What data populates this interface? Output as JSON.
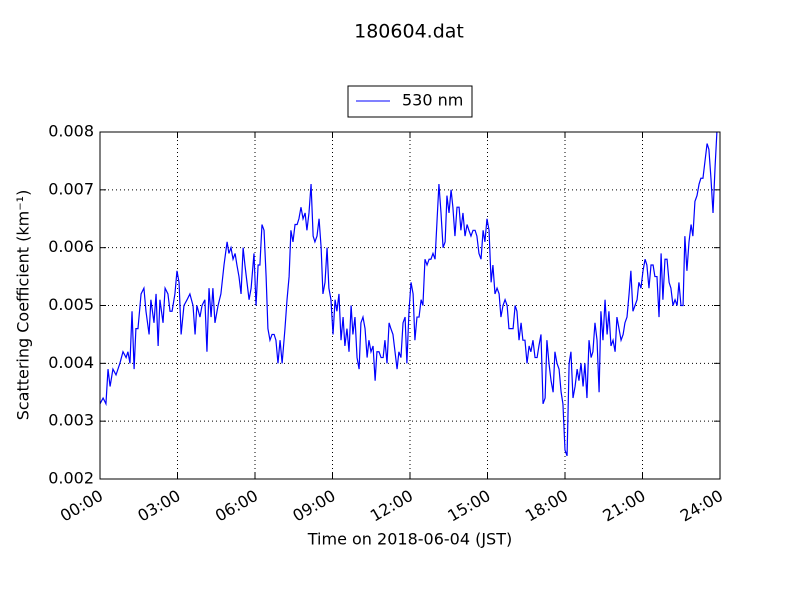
{
  "chart_data": {
    "type": "line",
    "title": "180604.dat",
    "x_label": "Time on 2018-06-04 (JST)",
    "y_label": "Scattering Coefficient (km⁻¹)",
    "legend": "top",
    "grid": true,
    "xlim": [
      0,
      24
    ],
    "xticks": [
      {
        "value": 0,
        "label": "00:00"
      },
      {
        "value": 3,
        "label": "03:00"
      },
      {
        "value": 6,
        "label": "06:00"
      },
      {
        "value": 9,
        "label": "09:00"
      },
      {
        "value": 12,
        "label": "12:00"
      },
      {
        "value": 15,
        "label": "15:00"
      },
      {
        "value": 18,
        "label": "18:00"
      },
      {
        "value": 21,
        "label": "21:00"
      },
      {
        "value": 24,
        "label": "24:00"
      }
    ],
    "ylim": [
      0.002,
      0.008
    ],
    "yticks": [
      0.002,
      0.003,
      0.004,
      0.005,
      0.006,
      0.007,
      0.008
    ],
    "x": [
      0.0,
      0.12,
      0.23,
      0.31,
      0.39,
      0.5,
      0.62,
      0.77,
      0.89,
      1.01,
      1.08,
      1.16,
      1.24,
      1.32,
      1.39,
      1.47,
      1.59,
      1.7,
      1.78,
      1.9,
      1.97,
      2.09,
      2.17,
      2.25,
      2.32,
      2.44,
      2.52,
      2.63,
      2.71,
      2.79,
      2.9,
      2.98,
      3.06,
      3.14,
      3.25,
      3.37,
      3.48,
      3.6,
      3.68,
      3.75,
      3.87,
      3.95,
      4.06,
      4.14,
      4.22,
      4.3,
      4.37,
      4.45,
      4.57,
      4.68,
      4.8,
      4.92,
      4.99,
      5.07,
      5.15,
      5.23,
      5.3,
      5.38,
      5.46,
      5.54,
      5.61,
      5.69,
      5.77,
      5.85,
      5.96,
      6.04,
      6.12,
      6.19,
      6.27,
      6.35,
      6.43,
      6.5,
      6.58,
      6.66,
      6.74,
      6.81,
      6.89,
      6.97,
      7.05,
      7.16,
      7.24,
      7.32,
      7.39,
      7.47,
      7.55,
      7.63,
      7.7,
      7.78,
      7.86,
      7.94,
      8.01,
      8.09,
      8.17,
      8.25,
      8.32,
      8.4,
      8.48,
      8.56,
      8.63,
      8.71,
      8.79,
      8.86,
      8.94,
      9.02,
      9.1,
      9.17,
      9.25,
      9.33,
      9.41,
      9.48,
      9.56,
      9.64,
      9.72,
      9.79,
      9.87,
      9.95,
      10.03,
      10.1,
      10.18,
      10.26,
      10.34,
      10.41,
      10.49,
      10.57,
      10.65,
      10.72,
      10.8,
      10.88,
      10.96,
      11.03,
      11.11,
      11.19,
      11.26,
      11.34,
      11.42,
      11.5,
      11.57,
      11.65,
      11.73,
      11.81,
      11.88,
      11.96,
      12.04,
      12.12,
      12.19,
      12.27,
      12.35,
      12.43,
      12.5,
      12.58,
      12.66,
      12.74,
      12.81,
      12.89,
      12.97,
      13.05,
      13.12,
      13.2,
      13.28,
      13.36,
      13.43,
      13.51,
      13.59,
      13.66,
      13.74,
      13.82,
      13.9,
      13.97,
      14.05,
      14.13,
      14.21,
      14.28,
      14.36,
      14.44,
      14.52,
      14.59,
      14.67,
      14.75,
      14.83,
      14.9,
      14.98,
      15.06,
      15.14,
      15.21,
      15.29,
      15.37,
      15.45,
      15.52,
      15.6,
      15.68,
      15.76,
      15.83,
      15.91,
      15.99,
      16.07,
      16.14,
      16.22,
      16.3,
      16.37,
      16.45,
      16.53,
      16.61,
      16.68,
      16.76,
      16.84,
      16.92,
      16.99,
      17.07,
      17.15,
      17.23,
      17.3,
      17.38,
      17.46,
      17.54,
      17.61,
      17.69,
      17.77,
      17.85,
      17.92,
      18.0,
      18.08,
      18.16,
      18.23,
      18.31,
      18.39,
      18.47,
      18.54,
      18.62,
      18.7,
      18.77,
      18.85,
      18.93,
      19.01,
      19.08,
      19.16,
      19.24,
      19.32,
      19.39,
      19.47,
      19.55,
      19.63,
      19.7,
      19.78,
      19.86,
      19.94,
      20.01,
      20.09,
      20.17,
      20.25,
      20.32,
      20.4,
      20.48,
      20.55,
      20.63,
      20.71,
      20.79,
      20.86,
      20.94,
      21.02,
      21.1,
      21.17,
      21.25,
      21.33,
      21.41,
      21.48,
      21.56,
      21.64,
      21.72,
      21.79,
      21.87,
      21.95,
      22.03,
      22.1,
      22.18,
      22.26,
      22.34,
      22.41,
      22.49,
      22.57,
      22.64,
      22.72,
      22.8,
      22.88,
      22.95,
      23.03,
      23.11,
      23.19,
      23.26,
      23.34,
      23.42,
      23.5,
      23.57,
      23.65,
      23.73,
      23.81,
      23.88
    ],
    "series": [
      {
        "name": "530 nm",
        "color": "#0000ff",
        "values": [
          0.0033,
          0.0034,
          0.0033,
          0.0039,
          0.0036,
          0.0039,
          0.0038,
          0.004,
          0.0042,
          0.0041,
          0.0042,
          0.004,
          0.0049,
          0.0039,
          0.0046,
          0.0046,
          0.0052,
          0.0053,
          0.0049,
          0.0045,
          0.0051,
          0.0047,
          0.0052,
          0.0043,
          0.0051,
          0.0047,
          0.0053,
          0.0052,
          0.0049,
          0.0049,
          0.0052,
          0.0056,
          0.0054,
          0.0045,
          0.005,
          0.0051,
          0.0052,
          0.005,
          0.0045,
          0.005,
          0.0048,
          0.005,
          0.0051,
          0.0042,
          0.0053,
          0.0048,
          0.0053,
          0.0047,
          0.005,
          0.0052,
          0.0057,
          0.0061,
          0.0059,
          0.006,
          0.0058,
          0.0059,
          0.0057,
          0.0055,
          0.0052,
          0.006,
          0.0057,
          0.0054,
          0.0051,
          0.0053,
          0.0059,
          0.005,
          0.0057,
          0.0057,
          0.0064,
          0.0063,
          0.0055,
          0.0046,
          0.0044,
          0.0045,
          0.0045,
          0.0044,
          0.004,
          0.0044,
          0.004,
          0.0046,
          0.0051,
          0.0055,
          0.0063,
          0.0061,
          0.0064,
          0.0064,
          0.0065,
          0.0067,
          0.0065,
          0.0066,
          0.0063,
          0.0066,
          0.0071,
          0.0062,
          0.0061,
          0.0062,
          0.0065,
          0.006,
          0.0052,
          0.0054,
          0.006,
          0.0053,
          0.0051,
          0.0045,
          0.0051,
          0.0049,
          0.0052,
          0.0044,
          0.0048,
          0.0043,
          0.0046,
          0.0042,
          0.005,
          0.0045,
          0.0048,
          0.0041,
          0.0039,
          0.0047,
          0.0048,
          0.0046,
          0.0041,
          0.0044,
          0.0042,
          0.0043,
          0.0037,
          0.0042,
          0.0042,
          0.0041,
          0.0041,
          0.0044,
          0.004,
          0.0047,
          0.0046,
          0.0045,
          0.0042,
          0.0039,
          0.0042,
          0.0041,
          0.0047,
          0.0048,
          0.004,
          0.0049,
          0.0054,
          0.0052,
          0.0044,
          0.0048,
          0.0048,
          0.0051,
          0.005,
          0.0058,
          0.0057,
          0.0058,
          0.0058,
          0.0059,
          0.0058,
          0.0065,
          0.0071,
          0.0066,
          0.006,
          0.0061,
          0.0069,
          0.0066,
          0.007,
          0.0067,
          0.0062,
          0.0067,
          0.0067,
          0.0063,
          0.0066,
          0.0062,
          0.0064,
          0.0063,
          0.0062,
          0.0063,
          0.0063,
          0.0062,
          0.0059,
          0.0058,
          0.0063,
          0.0061,
          0.0065,
          0.0063,
          0.0054,
          0.0057,
          0.0052,
          0.0053,
          0.0052,
          0.0048,
          0.005,
          0.0051,
          0.005,
          0.0046,
          0.0046,
          0.0046,
          0.005,
          0.0049,
          0.0044,
          0.0047,
          0.0044,
          0.0044,
          0.004,
          0.0043,
          0.0042,
          0.0044,
          0.0041,
          0.0041,
          0.0043,
          0.0045,
          0.0033,
          0.0034,
          0.0044,
          0.004,
          0.0037,
          0.0035,
          0.0042,
          0.004,
          0.0039,
          0.0035,
          0.0033,
          0.0025,
          0.0024,
          0.004,
          0.0042,
          0.0034,
          0.0036,
          0.0039,
          0.0037,
          0.004,
          0.0036,
          0.004,
          0.0034,
          0.0044,
          0.0041,
          0.0042,
          0.0047,
          0.0044,
          0.0035,
          0.0049,
          0.0044,
          0.0051,
          0.0045,
          0.0049,
          0.0043,
          0.0044,
          0.0042,
          0.0048,
          0.0046,
          0.0044,
          0.0045,
          0.0047,
          0.0048,
          0.0052,
          0.0056,
          0.0049,
          0.005,
          0.0051,
          0.0054,
          0.0053,
          0.0056,
          0.0058,
          0.0057,
          0.0053,
          0.0057,
          0.0057,
          0.0055,
          0.0055,
          0.0048,
          0.0059,
          0.0051,
          0.0058,
          0.0058,
          0.0054,
          0.0053,
          0.005,
          0.0051,
          0.005,
          0.0054,
          0.005,
          0.005,
          0.0062,
          0.0056,
          0.0061,
          0.0064,
          0.0062,
          0.0068,
          0.0069,
          0.0071,
          0.0072,
          0.0072,
          0.0075,
          0.0078,
          0.0077,
          0.0072,
          0.0066,
          0.0074,
          0.008
        ]
      }
    ]
  }
}
